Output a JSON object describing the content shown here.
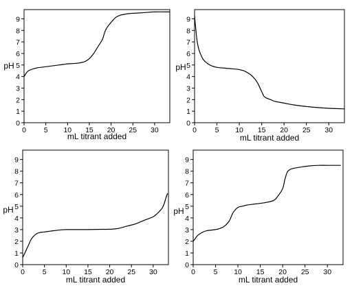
{
  "chart_data": [
    {
      "type": "line",
      "xlabel": "mL titrant added",
      "ylabel": "pH",
      "xlim": [
        0,
        33.5
      ],
      "ylim": [
        0,
        9.8
      ],
      "xticks": [
        0,
        5,
        10,
        15,
        20,
        25,
        30
      ],
      "yticks": [
        0,
        1,
        2,
        3,
        4,
        5,
        6,
        7,
        8,
        9
      ],
      "grid": false,
      "series": [
        {
          "x": [
            0,
            0.5,
            1,
            2,
            3,
            5,
            7,
            9,
            10,
            12,
            13,
            14,
            15,
            16,
            17,
            18,
            18.5,
            19,
            20,
            21,
            22,
            24,
            26,
            28,
            30,
            33.5
          ],
          "y": [
            4.0,
            4.3,
            4.5,
            4.65,
            4.75,
            4.85,
            4.95,
            5.05,
            5.1,
            5.15,
            5.2,
            5.3,
            5.55,
            6.0,
            6.6,
            7.2,
            7.8,
            8.2,
            8.7,
            9.1,
            9.3,
            9.45,
            9.5,
            9.55,
            9.6,
            9.6
          ]
        }
      ]
    },
    {
      "type": "line",
      "xlabel": "mL titrant added",
      "ylabel": "pH",
      "xlim": [
        0,
        33.5
      ],
      "ylim": [
        0,
        9.8
      ],
      "xticks": [
        0,
        5,
        10,
        15,
        20,
        25,
        30
      ],
      "yticks": [
        0,
        1,
        2,
        3,
        4,
        5,
        6,
        7,
        8,
        9
      ],
      "grid": false,
      "series": [
        {
          "x": [
            0,
            0.3,
            0.6,
            1,
            1.5,
            2,
            3,
            4,
            5,
            7,
            9,
            10,
            11,
            12,
            13,
            14,
            15,
            15.5,
            16,
            17,
            18,
            20,
            22,
            25,
            28,
            30,
            33.5
          ],
          "y": [
            9.3,
            8.0,
            7.0,
            6.3,
            5.8,
            5.45,
            5.1,
            4.9,
            4.8,
            4.72,
            4.65,
            4.6,
            4.5,
            4.3,
            4.0,
            3.5,
            2.7,
            2.3,
            2.15,
            2.0,
            1.85,
            1.7,
            1.55,
            1.4,
            1.3,
            1.25,
            1.2
          ]
        }
      ]
    },
    {
      "type": "line",
      "xlabel": "mL titrant added",
      "ylabel": "pH",
      "xlim": [
        0,
        33.5
      ],
      "ylim": [
        0,
        9.8
      ],
      "xticks": [
        0,
        5,
        10,
        15,
        20,
        25,
        30
      ],
      "yticks": [
        0,
        1,
        2,
        3,
        4,
        5,
        6,
        7,
        8,
        9
      ],
      "grid": false,
      "series": [
        {
          "x": [
            0,
            0.5,
            1,
            1.5,
            2,
            3,
            4,
            5,
            7,
            9,
            10,
            12,
            15,
            18,
            20,
            21,
            22,
            24,
            26,
            28,
            30,
            31,
            32,
            32.5,
            33,
            33.3
          ],
          "y": [
            0.6,
            1.0,
            1.4,
            1.8,
            2.2,
            2.6,
            2.75,
            2.8,
            2.9,
            2.98,
            3.0,
            3.0,
            3.0,
            3.02,
            3.03,
            3.05,
            3.1,
            3.3,
            3.5,
            3.8,
            4.1,
            4.4,
            4.8,
            5.2,
            5.8,
            6.1
          ]
        }
      ]
    },
    {
      "type": "line",
      "xlabel": "mL titrant added",
      "ylabel": "pH",
      "xlim": [
        0,
        33.5
      ],
      "ylim": [
        0,
        9.8
      ],
      "xticks": [
        0,
        5,
        10,
        15,
        20,
        25,
        30
      ],
      "yticks": [
        0,
        1,
        2,
        3,
        4,
        5,
        6,
        7,
        8,
        9
      ],
      "grid": false,
      "series": [
        {
          "x": [
            0,
            0.5,
            1,
            2,
            3,
            5,
            6,
            7,
            8,
            8.5,
            9,
            10,
            11,
            12,
            14,
            16,
            18,
            19,
            20,
            20.5,
            21,
            21.5,
            22,
            24,
            26,
            28,
            30,
            33
          ],
          "y": [
            2.0,
            2.25,
            2.5,
            2.75,
            2.9,
            3.0,
            3.1,
            3.3,
            3.7,
            4.1,
            4.5,
            4.9,
            5.0,
            5.1,
            5.2,
            5.3,
            5.5,
            5.9,
            6.5,
            7.3,
            7.9,
            8.1,
            8.2,
            8.35,
            8.45,
            8.5,
            8.5,
            8.5
          ]
        }
      ]
    }
  ]
}
